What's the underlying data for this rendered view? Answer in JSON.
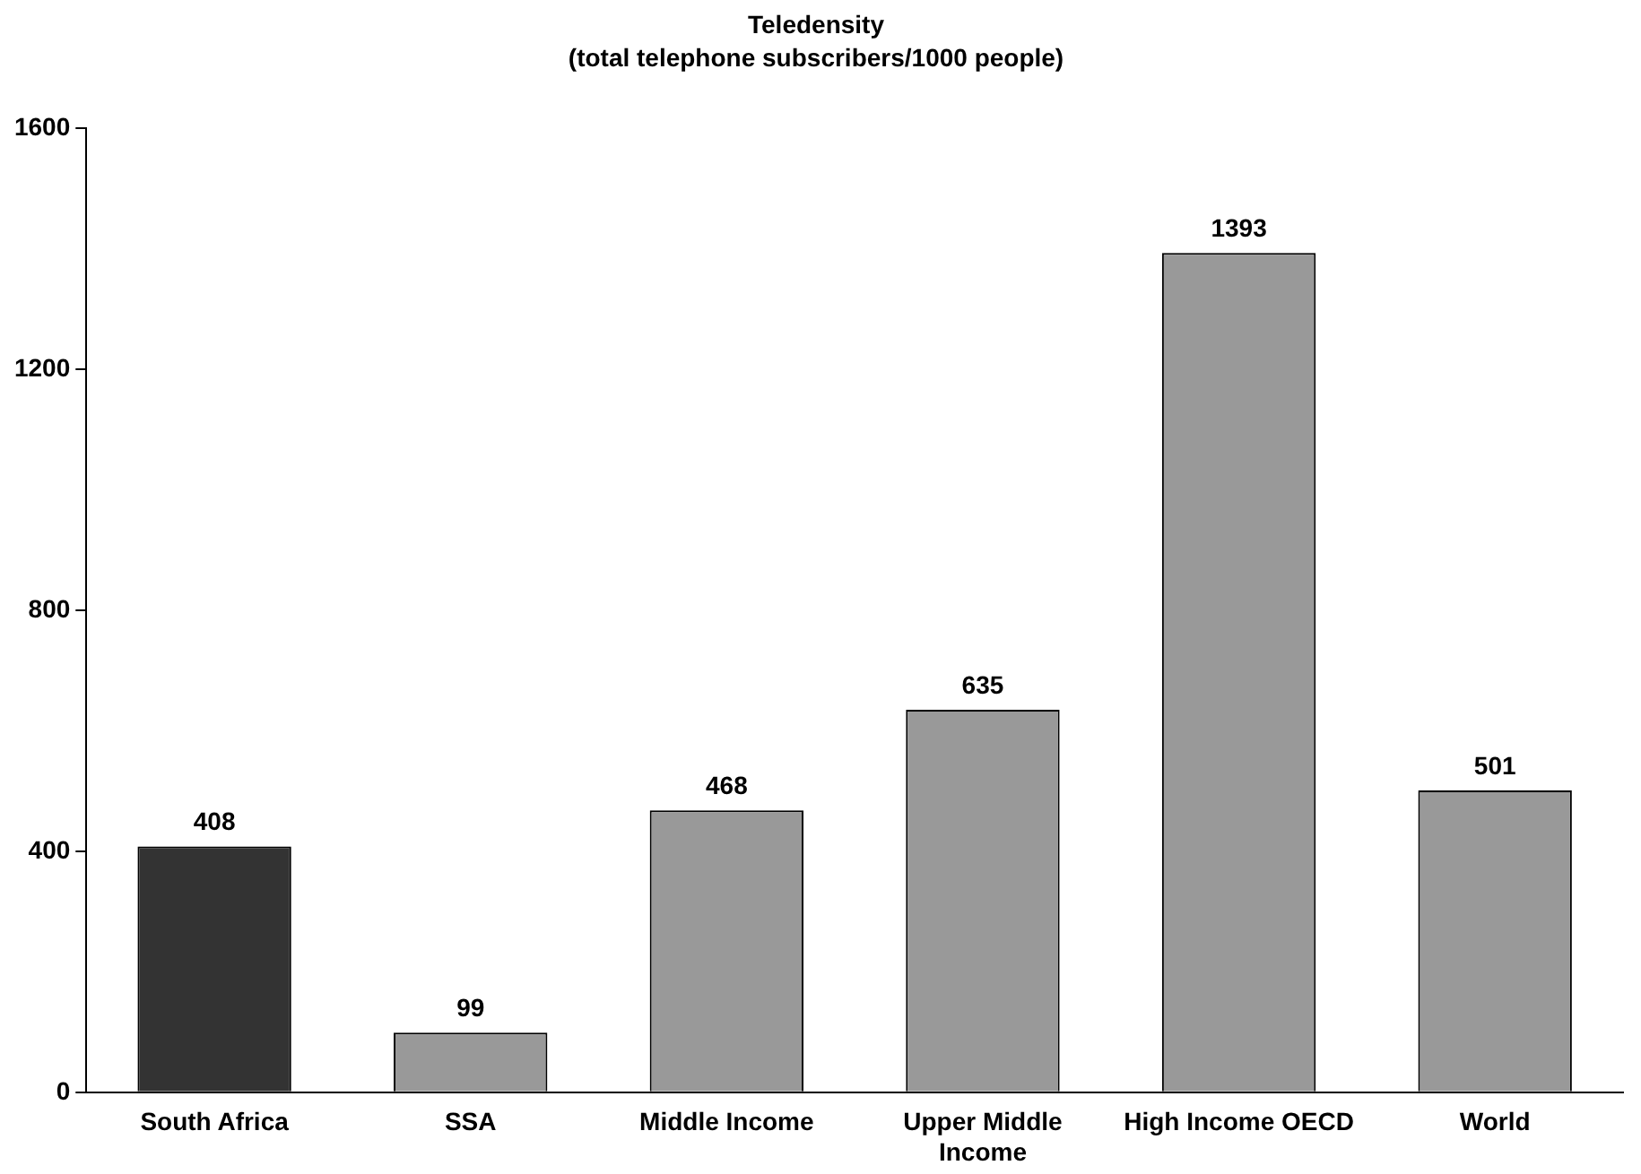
{
  "chart_data": {
    "type": "bar",
    "title": "Teledensity",
    "subtitle": "(total telephone subscribers/1000 people)",
    "categories": [
      "South Africa",
      "SSA",
      "Middle Income",
      "Upper Middle Income",
      "High Income OECD",
      "World"
    ],
    "values": [
      408,
      99,
      468,
      635,
      1393,
      501
    ],
    "colors": [
      "#333333",
      "#999999",
      "#999999",
      "#999999",
      "#999999",
      "#999999"
    ],
    "ylim": [
      0,
      1600
    ],
    "yticks": [
      0,
      400,
      800,
      1200,
      1600
    ],
    "grid": false,
    "legend": false,
    "data_labels": true
  }
}
